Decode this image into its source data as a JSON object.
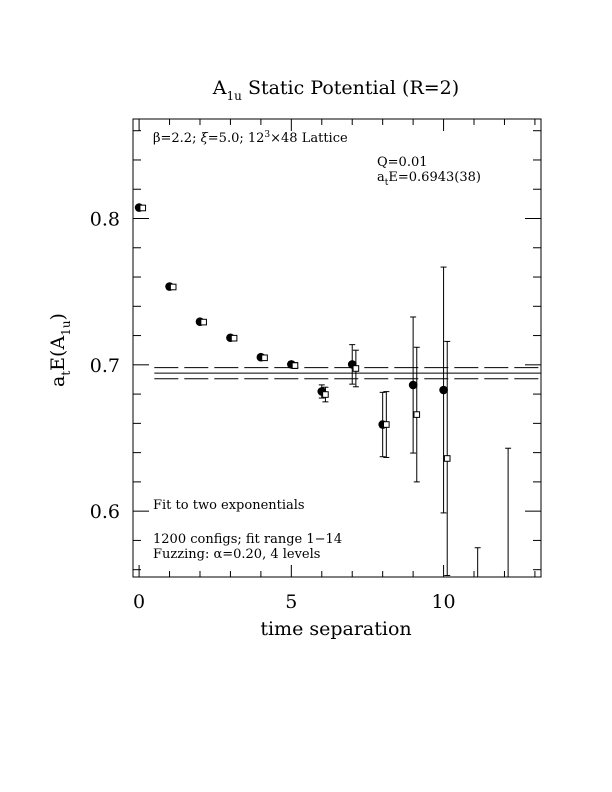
{
  "chart_data": {
    "type": "scatter",
    "title": "A",
    "title_sub": "1u",
    "title_rest": " Static Potential (R=2)",
    "xlabel": "time separation",
    "ylabel_main": "a",
    "ylabel_sub_t": "t",
    "ylabel_mid": "E(A",
    "ylabel_sub_1u": "1u",
    "ylabel_end": ")",
    "xlim": [
      -0.2,
      13.2
    ],
    "ylim": [
      0.555,
      0.868
    ],
    "x_ticks": [
      0,
      5,
      10
    ],
    "x_tick_labels": [
      "0",
      "5",
      "10"
    ],
    "y_ticks": [
      0.6,
      0.7,
      0.8
    ],
    "y_tick_labels": [
      "0.6",
      "0.7",
      "0.8"
    ],
    "grid": false,
    "annotations": {
      "lattice_beta": "β=2.2; ",
      "lattice_xi": "ξ",
      "lattice_rest": "=5.0; 12",
      "lattice_sup": "3",
      "lattice_end": "×48 Lattice",
      "fit_q": "Q=0.01",
      "fit_a": "a",
      "fit_t": "t",
      "fit_e": "E=0.6943(38)",
      "fit_method": "Fit to two exponentials",
      "configs": "1200 configs; fit range 1−14",
      "fuzzing": "Fuzzing: α=0.20, 4 levels"
    },
    "fit": {
      "central": 0.6943,
      "upper": 0.6981,
      "lower": 0.6905,
      "x_start": 0.5,
      "x_end": 13.2
    },
    "series": [
      {
        "marker": "filled-circle",
        "x": [
          0,
          1,
          2,
          3,
          4,
          5,
          6,
          7,
          8,
          9,
          10
        ],
        "y": [
          0.8075,
          0.7535,
          0.7295,
          0.7185,
          0.7052,
          0.7003,
          0.6818,
          0.7003,
          0.6592,
          0.6862,
          0.6828
        ],
        "err": [
          0.0005,
          0.0008,
          0.001,
          0.0012,
          0.0015,
          0.002,
          0.0045,
          0.0135,
          0.022,
          0.0465,
          0.084
        ]
      },
      {
        "marker": "open-square",
        "x": [
          0,
          1,
          2,
          3,
          4,
          5,
          6,
          7,
          8,
          9,
          10,
          11,
          12
        ],
        "y": [
          0.8072,
          0.7532,
          0.7292,
          0.7182,
          0.7048,
          0.6995,
          0.6797,
          0.6975,
          0.6592,
          0.666,
          0.636,
          0.545,
          0.545
        ],
        "err": [
          0.0005,
          0.0008,
          0.001,
          0.0012,
          0.0015,
          0.002,
          0.005,
          0.0125,
          0.0225,
          0.046,
          0.08,
          0.03,
          0.098
        ]
      }
    ]
  }
}
